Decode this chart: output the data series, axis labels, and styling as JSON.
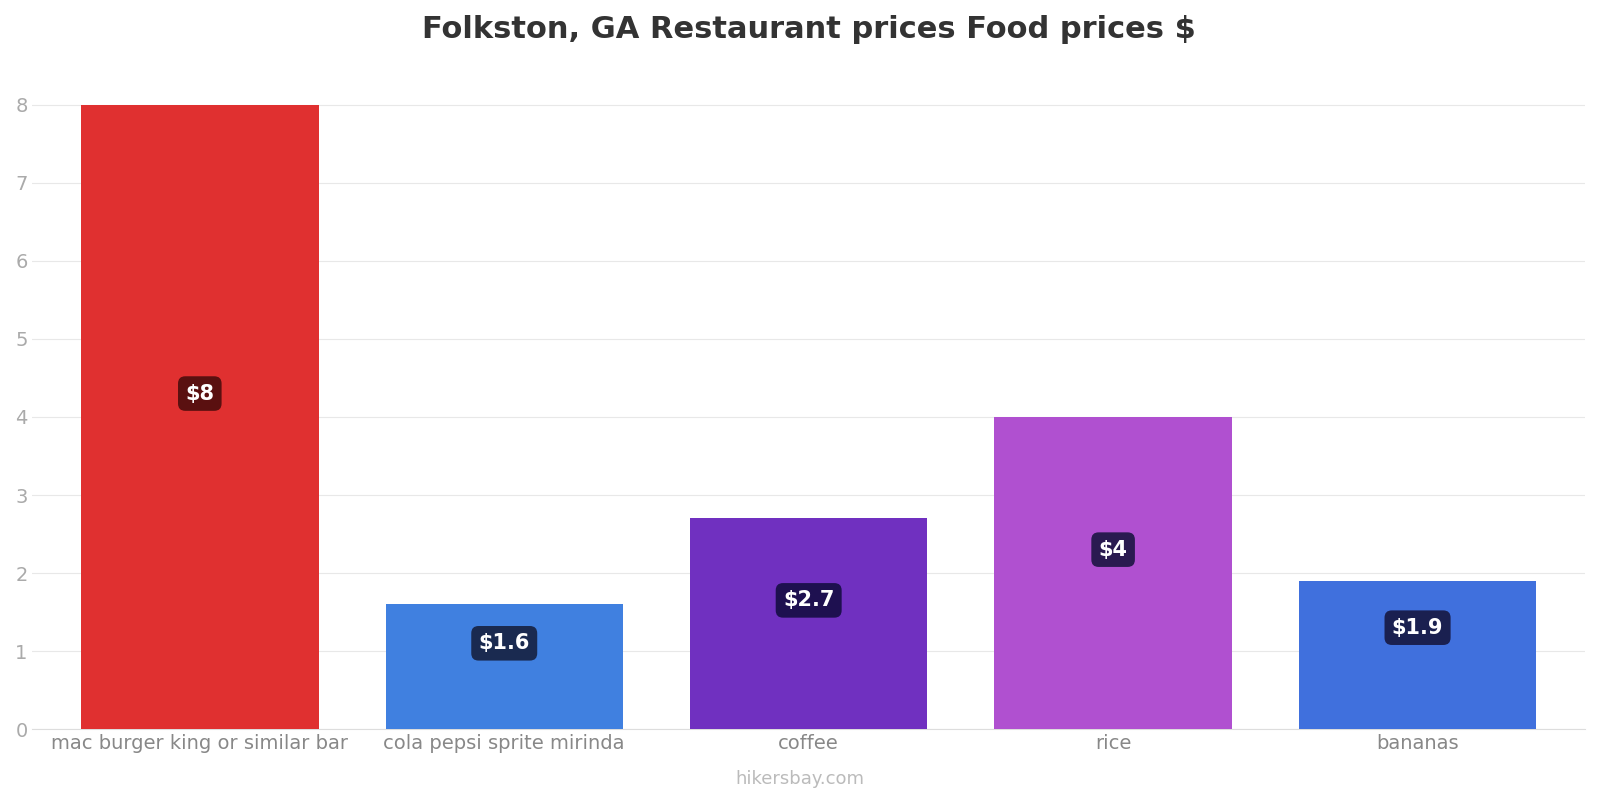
{
  "title": "Folkston, GA Restaurant prices Food prices $",
  "categories": [
    "mac burger king or similar bar",
    "cola pepsi sprite mirinda",
    "coffee",
    "rice",
    "bananas"
  ],
  "values": [
    8.0,
    1.6,
    2.7,
    4.0,
    1.9
  ],
  "bar_colors": [
    "#e03030",
    "#4080e0",
    "#7030c0",
    "#b050d0",
    "#4070dd"
  ],
  "label_texts": [
    "$8",
    "$1.6",
    "$2.7",
    "$4",
    "$1.9"
  ],
  "label_bg_colors": [
    "#5a1010",
    "#1a2a50",
    "#1e1050",
    "#2a1a50",
    "#1a2050"
  ],
  "ylim": [
    0,
    8.5
  ],
  "yticks": [
    0,
    1,
    2,
    3,
    4,
    5,
    6,
    7,
    8
  ],
  "title_fontsize": 22,
  "tick_fontsize": 14,
  "watermark": "hikersbay.com",
  "background_color": "#ffffff",
  "label_y_abs": [
    4.3,
    1.1,
    1.65,
    2.3,
    1.3
  ]
}
